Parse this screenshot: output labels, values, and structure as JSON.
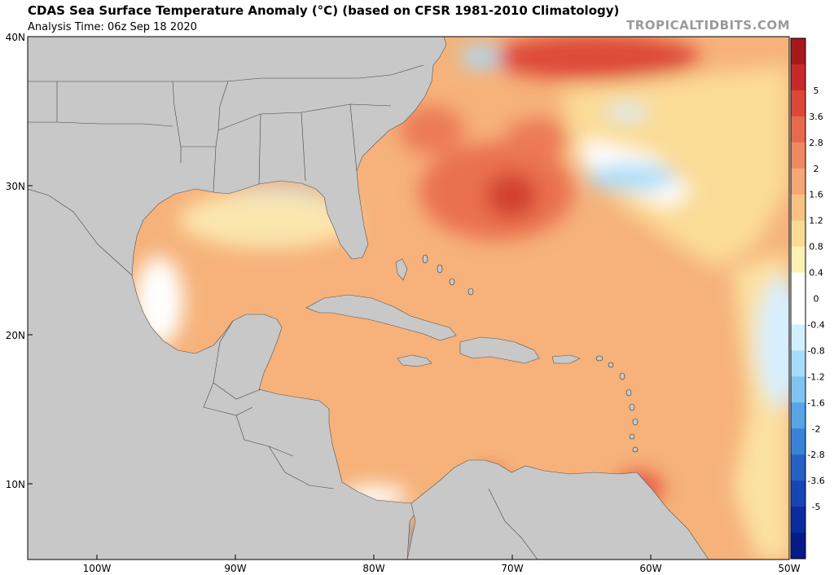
{
  "header": {
    "title": "CDAS Sea Surface Temperature Anomaly (°C) (based on CFSR 1981-2010 Climatology)",
    "subtitle": "Analysis Time: 06z Sep 18 2020",
    "brand": "TROPICALTIDBITS.COM"
  },
  "map": {
    "region": "Gulf of Mexico, Caribbean Sea and western North Atlantic",
    "lon_range": [
      -105,
      -50
    ],
    "lat_range": [
      5,
      40
    ],
    "lat_ticks": [
      "40N",
      "30N",
      "20N",
      "10N"
    ],
    "lon_ticks": [
      "100W",
      "90W",
      "80W",
      "70W",
      "60W",
      "50W"
    ],
    "land_color": "#c8c8c8"
  },
  "colorbar": {
    "labels": [
      "5",
      "3.6",
      "2.8",
      "2",
      "1.6",
      "1.2",
      "0.8",
      "0.4",
      "0",
      "-0.4",
      "-0.8",
      "-1.2",
      "-1.6",
      "-2",
      "-2.8",
      "-3.6",
      "-5"
    ],
    "colors": [
      "#a8191e",
      "#c8282a",
      "#dd4639",
      "#e8694d",
      "#ef8a60",
      "#f4a674",
      "#f8c282",
      "#fbdb94",
      "#fdf0b5",
      "#ffffff",
      "#ffffff",
      "#d3efff",
      "#a6dcfb",
      "#7fc3f2",
      "#57a4e6",
      "#3a82d8",
      "#2462c6",
      "#1845b3",
      "#0b2c9f",
      "#061b8a"
    ]
  }
}
